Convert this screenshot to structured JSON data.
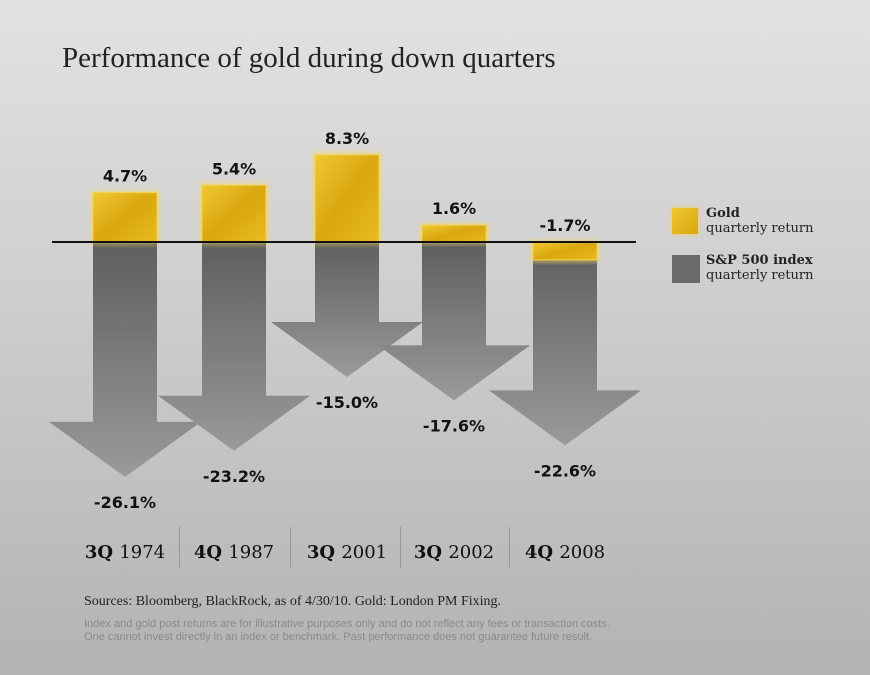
{
  "chart_data": {
    "type": "bar",
    "title": "Performance of gold during down quarters",
    "categories": [
      {
        "q": "3Q",
        "y": "1974"
      },
      {
        "q": "4Q",
        "y": "1987"
      },
      {
        "q": "3Q",
        "y": "2001"
      },
      {
        "q": "3Q",
        "y": "2002"
      },
      {
        "q": "4Q",
        "y": "2008"
      }
    ],
    "series": [
      {
        "name": "Gold",
        "sub": "quarterly return",
        "color": "#e2b316",
        "values": [
          4.7,
          5.4,
          8.3,
          1.6,
          -1.7
        ],
        "labels": [
          "4.7%",
          "5.4%",
          "8.3%",
          "1.6%",
          "-1.7%"
        ]
      },
      {
        "name": "S&P 500 index",
        "sub": "quarterly return",
        "color": "#6a6a6a",
        "values": [
          -26.1,
          -23.2,
          -15.0,
          -17.6,
          -22.6
        ],
        "labels": [
          "-26.1%",
          "-23.2%",
          "-15.0%",
          "-17.6%",
          "-22.6%"
        ]
      }
    ],
    "legend": "right"
  },
  "footer": {
    "sources": "Sources: Bloomberg, BlackRock, as of 4/30/10. Gold: London PM Fixing.",
    "disclaimer1": "Index and gold post returns are for illustrative purposes only and do not reflect any fees or transaction costs.",
    "disclaimer2": "One cannot invest directly in an index or benchmark. Past performance does not guarantee future result."
  }
}
